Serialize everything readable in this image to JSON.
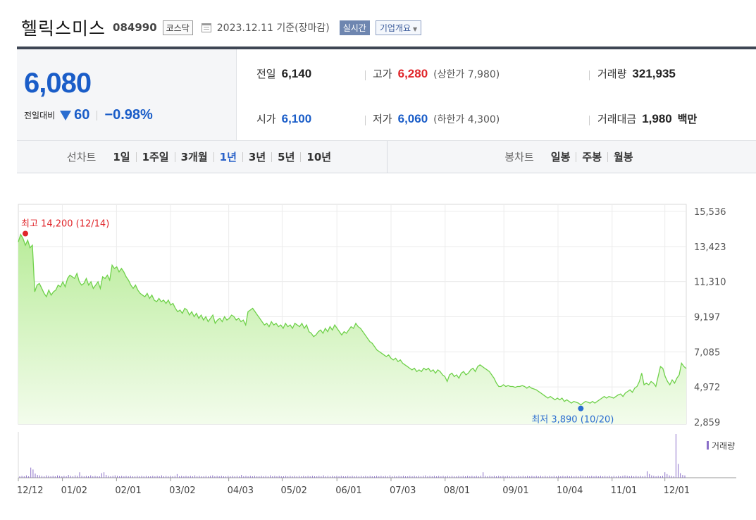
{
  "header": {
    "name": "헬릭스미스",
    "code": "084990",
    "market": "코스닥",
    "date": "2023.12.11 기준(장마감)",
    "realtime_label": "실시간",
    "company_label": "기업개요"
  },
  "price": {
    "current": "6,080",
    "change_label": "전일대비",
    "change_value": "60",
    "change_pct": "−0.98%"
  },
  "stats": {
    "prev_label": "전일",
    "prev_value": "6,140",
    "high_label": "고가",
    "high_value": "6,280",
    "upper_limit": "(상한가 7,980)",
    "volume_label": "거래량",
    "volume_value": "321,935",
    "open_label": "시가",
    "open_value": "6,100",
    "low_label": "저가",
    "low_value": "6,060",
    "lower_limit": "(하한가 4,300)",
    "amount_label": "거래대금",
    "amount_value": "1,980",
    "amount_unit": "백만"
  },
  "period_tabs": {
    "line_label": "선차트",
    "line_items": [
      "1일",
      "1주일",
      "3개월",
      "1년",
      "3년",
      "5년",
      "10년"
    ],
    "active": "1년",
    "candle_label": "봉차트",
    "candle_items": [
      "일봉",
      "주봉",
      "월봉"
    ]
  },
  "chart_data": {
    "type": "area",
    "y_ticks": [
      "15,536",
      "13,423",
      "11,310",
      "9,197",
      "7,085",
      "4,972",
      "2,859"
    ],
    "ylim": [
      2859,
      15536
    ],
    "x_ticks": [
      "12/12",
      "01/02",
      "02/01",
      "03/02",
      "04/03",
      "05/02",
      "06/01",
      "07/03",
      "08/01",
      "09/01",
      "10/04",
      "11/01",
      "12/01"
    ],
    "high_annotation": "최고 14,200 (12/14)",
    "low_annotation": "최저 3,890 (10/20)",
    "high_value": 14200,
    "low_value": 3890,
    "volume_legend": "거래량",
    "series": [
      {
        "values": [
          13700,
          14150,
          13900,
          13500,
          13800,
          13350,
          13500,
          10700,
          11100,
          11200,
          10900,
          10600,
          10400,
          10800,
          10500,
          10700,
          10800,
          11100,
          11000,
          11300,
          11000,
          11500,
          11700,
          11600,
          11500,
          11800,
          11300,
          11100,
          11200,
          11500,
          11100,
          11300,
          10900,
          11100,
          11300,
          10900,
          11600,
          11500,
          11700,
          11400,
          12300,
          12100,
          12200,
          11900,
          12100,
          11900,
          11600,
          11400,
          11100,
          10900,
          11100,
          10800,
          10600,
          10500,
          10400,
          10600,
          10300,
          10500,
          10200,
          10100,
          10300,
          10100,
          10200,
          10000,
          10200,
          9900,
          10000,
          9700,
          9500,
          9600,
          9400,
          9700,
          9600,
          9300,
          9500,
          9200,
          9400,
          9100,
          9300,
          9000,
          9200,
          8900,
          9100,
          9300,
          8800,
          9000,
          9100,
          8900,
          9200,
          9000,
          9100,
          9300,
          9200,
          9000,
          9100,
          8900,
          9000,
          8700,
          9500,
          9600,
          9700,
          9500,
          9300,
          9100,
          8900,
          8700,
          8800,
          8600,
          8900,
          8700,
          8800,
          8600,
          8700,
          8500,
          8800,
          8600,
          8700,
          8500,
          8800,
          8700,
          8600,
          8800,
          8500,
          8700,
          8300,
          8200,
          8000,
          8100,
          8300,
          8400,
          8200,
          8500,
          8300,
          8600,
          8400,
          8700,
          8500,
          8300,
          8100,
          8300,
          8200,
          8400,
          8600,
          8500,
          8800,
          8600,
          8500,
          8300,
          8100,
          7900,
          7700,
          7600,
          7400,
          7200,
          7100,
          7000,
          6900,
          6800,
          6900,
          6700,
          6600,
          6700,
          6500,
          6600,
          6400,
          6300,
          6200,
          6100,
          6000,
          6100,
          5900,
          6000,
          5900,
          6100,
          6000,
          6100,
          5900,
          6000,
          5800,
          6000,
          5900,
          5700,
          5600,
          5300,
          5700,
          5800,
          5600,
          5700,
          5500,
          5800,
          5900,
          5700,
          5800,
          6000,
          6100,
          5900,
          6200,
          6300,
          6200,
          6100,
          6000,
          5900,
          5700,
          5500,
          5200,
          5000,
          5000,
          5100,
          5000,
          5050,
          5000,
          5000,
          4950,
          5000,
          5000,
          5050,
          5000,
          4900,
          5000,
          4900,
          4850,
          4800,
          4700,
          4600,
          4500,
          4400,
          4300,
          4400,
          4300,
          4200,
          4300,
          4200,
          4300,
          4100,
          4200,
          4100,
          4000,
          4100,
          4050,
          4000,
          3890,
          4000,
          4100,
          4050,
          4000,
          4100,
          4000,
          4100,
          4200,
          4300,
          4400,
          4300,
          4400,
          4350,
          4300,
          4400,
          4500,
          4550,
          4400,
          4600,
          4700,
          4800,
          4650,
          4900,
          5000,
          5300,
          5800,
          5100,
          5200,
          5100,
          5300,
          5200,
          5000,
          5600,
          6200,
          6100,
          5600,
          5300,
          5100,
          5400,
          5200,
          5500,
          5700,
          6400,
          6200,
          6080
        ]
      }
    ],
    "volume": [
      3,
      4,
      3,
      5,
      3,
      22,
      18,
      9,
      6,
      5,
      4,
      3,
      5,
      4,
      3,
      4,
      3,
      5,
      4,
      3,
      4,
      3,
      6,
      4,
      3,
      5,
      4,
      12,
      4,
      3,
      4,
      3,
      5,
      3,
      4,
      3,
      3,
      10,
      12,
      6,
      4,
      3,
      4,
      5,
      4,
      3,
      4,
      3,
      4,
      3,
      4,
      3,
      3,
      4,
      3,
      4,
      3,
      4,
      3,
      3,
      4,
      3,
      4,
      3,
      5,
      3,
      4,
      3,
      4,
      3,
      4,
      8,
      3,
      4,
      3,
      4,
      3,
      4,
      3,
      5,
      3,
      4,
      3,
      3,
      4,
      3,
      4,
      5,
      3,
      4,
      3,
      4,
      3,
      3,
      4,
      3,
      4,
      3,
      4,
      3,
      6,
      3,
      4,
      3,
      4,
      3,
      4,
      3,
      3,
      4,
      3,
      4,
      3,
      5,
      3,
      4,
      3,
      4,
      3,
      3,
      4,
      3,
      4,
      3,
      4,
      3,
      4,
      3,
      4,
      3,
      4,
      3,
      4,
      3,
      3,
      4,
      3,
      5,
      3,
      4,
      3,
      4,
      3,
      4,
      3,
      4,
      3,
      3,
      4,
      3,
      4,
      3,
      4,
      3,
      4,
      3,
      4,
      3,
      4,
      3,
      3,
      4,
      3,
      4,
      3,
      4,
      3,
      5,
      3,
      4,
      3,
      4,
      3,
      4,
      3,
      3,
      4,
      3,
      4,
      3,
      4,
      3,
      4,
      5,
      3,
      4,
      3,
      4,
      3,
      4,
      3,
      4,
      3,
      4,
      3,
      4,
      3,
      3,
      4,
      3,
      4,
      3,
      4,
      3,
      4,
      3,
      4,
      3,
      4,
      12,
      4,
      3,
      4,
      3,
      4,
      3,
      4,
      3,
      4,
      3,
      4,
      3,
      4,
      3,
      3,
      4,
      3,
      4,
      3,
      4,
      3,
      4,
      3,
      4,
      3,
      4,
      3,
      4,
      3,
      4,
      3,
      4,
      3,
      4,
      3,
      4,
      3,
      4,
      3,
      4,
      3,
      4,
      3,
      5,
      4,
      3,
      4,
      3,
      4,
      3,
      4,
      3,
      4,
      3,
      4,
      3,
      4,
      3,
      4,
      3,
      4,
      3,
      4,
      5,
      4,
      3,
      4,
      3,
      4,
      3,
      4,
      3,
      4,
      14,
      8,
      5,
      4,
      3,
      4,
      3,
      4,
      12,
      8,
      5,
      4,
      3,
      95,
      30,
      10,
      6,
      5
    ]
  }
}
